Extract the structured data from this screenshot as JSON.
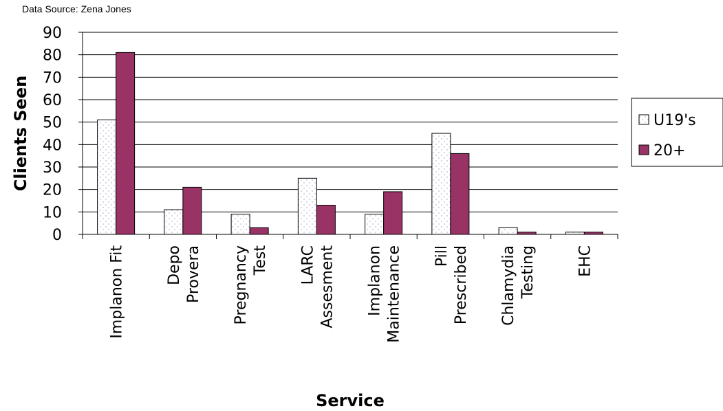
{
  "source_note": "Data Source: Zena Jones",
  "colors": {
    "u19_fill": "#ffffff",
    "u19_dots": "#b9b9de",
    "adult_fill": "#993366",
    "grid": "#000000"
  },
  "chart_data": {
    "type": "bar",
    "title": "",
    "xlabel": "Service",
    "ylabel": "Clients Seen",
    "ylim": [
      0,
      90
    ],
    "yticks": [
      0,
      10,
      20,
      30,
      40,
      50,
      60,
      70,
      80,
      90
    ],
    "grid": true,
    "legend_position": "right",
    "categories": [
      [
        "Implanon Fit"
      ],
      [
        "Depo",
        "Provera"
      ],
      [
        "Pregnancy",
        "Test"
      ],
      [
        "LARC",
        "Assesment"
      ],
      [
        "Implanon",
        "Maintenance"
      ],
      [
        "Pill",
        "Prescribed"
      ],
      [
        "Chlamydia",
        "Testing"
      ],
      [
        "EHC"
      ]
    ],
    "series": [
      {
        "name": "U19's",
        "values": [
          51,
          11,
          9,
          25,
          9,
          45,
          3,
          1
        ]
      },
      {
        "name": "20+",
        "values": [
          81,
          21,
          3,
          13,
          19,
          36,
          1,
          1
        ]
      }
    ]
  }
}
